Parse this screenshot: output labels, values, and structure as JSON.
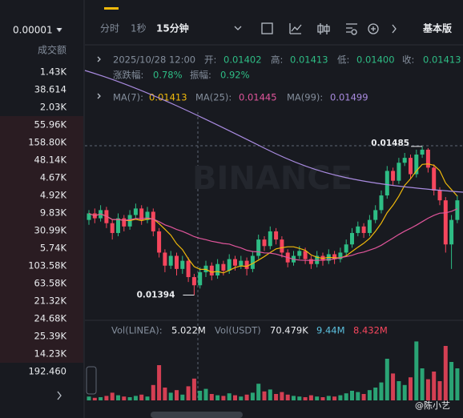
{
  "sidebar": {
    "tick_size": "0.00001",
    "label": "成交额",
    "amounts": [
      "1.43K",
      "38.614",
      "2.03K",
      "55.96K",
      "158.80K",
      "48.14K",
      "4.67K",
      "4.92K",
      "9.83K",
      "30.99K",
      "5.74K",
      "103.58K",
      "63.58K",
      "21.32K",
      "24.68K",
      "25.39K",
      "14.23K",
      "192.460"
    ]
  },
  "toolbar": {
    "tabs": [
      "分时",
      "1秒",
      "15分钟"
    ],
    "version": "基本版"
  },
  "info": {
    "date": "2025/10/28 12:00",
    "fields": [
      {
        "label": "开:",
        "value": "0.01402"
      },
      {
        "label": "高:",
        "value": "0.01413"
      },
      {
        "label": "低:",
        "value": "0.01400"
      },
      {
        "label": "收:",
        "value": "0.01413"
      }
    ],
    "change_label": "涨跌幅:",
    "change": "0.78%",
    "amp_label": "振幅:",
    "amp": "0.92%"
  },
  "ma": [
    {
      "label": "MA(7):",
      "value": "0.01413",
      "color": "#f0b90b"
    },
    {
      "label": "MA(25):",
      "value": "0.01445",
      "color": "#e0559b"
    },
    {
      "label": "MA(99):",
      "value": "0.01499",
      "color": "#a98be0"
    }
  ],
  "vol_info": {
    "label1": "Vol(LINEA):",
    "value1": "5.022M",
    "label2": "Vol(USDT)",
    "value2": "70.479K",
    "value3": "9.44M",
    "value4": "8.432M"
  },
  "watermark": "BINANCE",
  "credit": "@陈小艺",
  "chart": {
    "type": "candlestick",
    "ylim": [
      0.01381,
      0.01506
    ],
    "vol_ylim": [
      0,
      10
    ],
    "up_color": "#2ebd85",
    "down_color": "#f6465d",
    "high_label": "0.01485",
    "low_label": "0.01394",
    "candles": [
      [
        0.0144,
        0.01446,
        0.01437,
        0.01444
      ],
      [
        0.01444,
        0.01447,
        0.01438,
        0.01441
      ],
      [
        0.01441,
        0.01449,
        0.01439,
        0.01446
      ],
      [
        0.01446,
        0.01448,
        0.01435,
        0.01438
      ],
      [
        0.01438,
        0.0144,
        0.01428,
        0.01432
      ],
      [
        0.01432,
        0.01444,
        0.0143,
        0.01441
      ],
      [
        0.01441,
        0.01443,
        0.01433,
        0.01436
      ],
      [
        0.01436,
        0.01446,
        0.01434,
        0.01443
      ],
      [
        0.01443,
        0.0145,
        0.01441,
        0.01447
      ],
      [
        0.01447,
        0.01449,
        0.01437,
        0.0144
      ],
      [
        0.0144,
        0.01448,
        0.01438,
        0.01445
      ],
      [
        0.01445,
        0.01447,
        0.0143,
        0.01433
      ],
      [
        0.01433,
        0.01435,
        0.01417,
        0.0142
      ],
      [
        0.0142,
        0.01422,
        0.01408,
        0.01412
      ],
      [
        0.01412,
        0.01421,
        0.0141,
        0.01418
      ],
      [
        0.01418,
        0.0142,
        0.01406,
        0.0141
      ],
      [
        0.0141,
        0.01418,
        0.01407,
        0.01415
      ],
      [
        0.01415,
        0.01417,
        0.01402,
        0.01405
      ],
      [
        0.01405,
        0.01407,
        0.01394,
        0.014
      ],
      [
        0.014,
        0.01411,
        0.01398,
        0.01408
      ],
      [
        0.01408,
        0.01415,
        0.01405,
        0.01412
      ],
      [
        0.01412,
        0.01414,
        0.01403,
        0.01406
      ],
      [
        0.01406,
        0.01416,
        0.01404,
        0.01413
      ],
      [
        0.01413,
        0.01415,
        0.01406,
        0.01409
      ],
      [
        0.01409,
        0.01419,
        0.01407,
        0.01416
      ],
      [
        0.01416,
        0.01418,
        0.01409,
        0.01412
      ],
      [
        0.01412,
        0.01418,
        0.0141,
        0.01415
      ],
      [
        0.01415,
        0.01417,
        0.01406,
        0.0141
      ],
      [
        0.0141,
        0.01421,
        0.01408,
        0.01418
      ],
      [
        0.01418,
        0.01431,
        0.01416,
        0.01428
      ],
      [
        0.01428,
        0.0143,
        0.01421,
        0.01424
      ],
      [
        0.01424,
        0.01436,
        0.01422,
        0.01433
      ],
      [
        0.01433,
        0.01435,
        0.01425,
        0.01428
      ],
      [
        0.01428,
        0.0143,
        0.01417,
        0.0142
      ],
      [
        0.0142,
        0.01422,
        0.01411,
        0.01414
      ],
      [
        0.01414,
        0.01421,
        0.01412,
        0.01418
      ],
      [
        0.01418,
        0.01424,
        0.01416,
        0.01421
      ],
      [
        0.01421,
        0.01423,
        0.01413,
        0.01416
      ],
      [
        0.01416,
        0.01418,
        0.0141,
        0.01413
      ],
      [
        0.01413,
        0.01421,
        0.01411,
        0.01418
      ],
      [
        0.01418,
        0.0142,
        0.01412,
        0.01415
      ],
      [
        0.01415,
        0.01422,
        0.01413,
        0.01419
      ],
      [
        0.01419,
        0.01421,
        0.01413,
        0.01416
      ],
      [
        0.01416,
        0.01423,
        0.01414,
        0.0142
      ],
      [
        0.0142,
        0.01428,
        0.01418,
        0.01425
      ],
      [
        0.01425,
        0.01435,
        0.01423,
        0.01432
      ],
      [
        0.01432,
        0.01439,
        0.0143,
        0.01436
      ],
      [
        0.01436,
        0.01438,
        0.01429,
        0.01432
      ],
      [
        0.01432,
        0.01443,
        0.0143,
        0.0144
      ],
      [
        0.0144,
        0.01449,
        0.01438,
        0.01446
      ],
      [
        0.01446,
        0.01458,
        0.01444,
        0.01455
      ],
      [
        0.01455,
        0.01473,
        0.01453,
        0.0147
      ],
      [
        0.0147,
        0.01472,
        0.01461,
        0.01464
      ],
      [
        0.01464,
        0.01478,
        0.01462,
        0.01475
      ],
      [
        0.01475,
        0.01481,
        0.01473,
        0.01478
      ],
      [
        0.01478,
        0.0148,
        0.01465,
        0.01468
      ],
      [
        0.01468,
        0.01483,
        0.01466,
        0.0148
      ],
      [
        0.0148,
        0.01485,
        0.01478,
        0.01483
      ],
      [
        0.01483,
        0.01484,
        0.01469,
        0.01472
      ],
      [
        0.01472,
        0.01474,
        0.01455,
        0.01458
      ],
      [
        0.01458,
        0.0146,
        0.01449,
        0.01452
      ],
      [
        0.01452,
        0.01454,
        0.0142,
        0.01425
      ],
      [
        0.01425,
        0.01443,
        0.0141,
        0.0144
      ],
      [
        0.0144,
        0.01455,
        0.01438,
        0.01452
      ]
    ],
    "volumes": [
      0.6,
      0.4,
      0.5,
      0.7,
      1.2,
      0.8,
      0.6,
      0.5,
      0.7,
      0.9,
      0.6,
      2.4,
      5.5,
      2.0,
      1.2,
      1.6,
      0.9,
      2.2,
      3.4,
      1.5,
      1.8,
      1.0,
      0.8,
      0.7,
      1.1,
      0.8,
      0.6,
      0.9,
      1.2,
      2.6,
      1.4,
      1.7,
      1.0,
      1.3,
      0.9,
      0.7,
      0.6,
      0.5,
      0.8,
      0.6,
      0.5,
      0.7,
      0.6,
      0.8,
      1.1,
      1.5,
      1.3,
      1.0,
      1.6,
      2.0,
      2.8,
      6.5,
      4.2,
      3.0,
      2.4,
      3.6,
      9.2,
      5.0,
      3.3,
      4.5,
      3.0,
      8.5,
      6.0,
      5.0
    ]
  }
}
